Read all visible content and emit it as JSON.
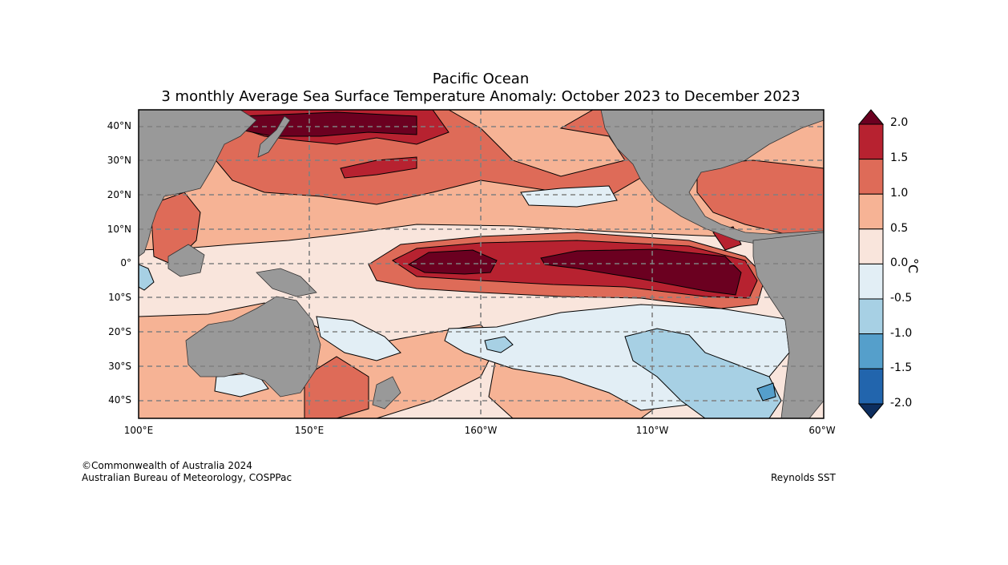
{
  "header": {
    "title": "Pacific Ocean",
    "subtitle": "3 monthly Average Sea Surface Temperature Anomaly: October 2023 to December 2023"
  },
  "map": {
    "lat_labels": [
      "40°N",
      "30°N",
      "20°N",
      "10°N",
      "0°",
      "10°S",
      "20°S",
      "30°S",
      "40°S"
    ],
    "lon_labels": [
      "100°E",
      "150°E",
      "160°W",
      "110°W",
      "60°W"
    ],
    "colors": {
      "ocean_neutral": "#f9e5dc",
      "land": "#999999",
      "grid": "#808080"
    }
  },
  "colorbar": {
    "unit": "°C",
    "labels": [
      "2.0",
      "1.5",
      "1.0",
      "0.5",
      "0.0",
      "-0.5",
      "-1.0",
      "-1.5",
      "-2.0"
    ],
    "bins": [
      {
        "range": ">2.0",
        "color": "#6b0020"
      },
      {
        "range": "1.5 to 2.0",
        "color": "#b72230"
      },
      {
        "range": "1.0 to 1.5",
        "color": "#de6b58"
      },
      {
        "range": "0.5 to 1.0",
        "color": "#f6b395"
      },
      {
        "range": "0.0 to 0.5",
        "color": "#f9e5dc"
      },
      {
        "range": "-0.5 to 0.0",
        "color": "#e2eef5"
      },
      {
        "range": "-1.0 to -0.5",
        "color": "#a7d0e4"
      },
      {
        "range": "-1.5 to -1.0",
        "color": "#559fcb"
      },
      {
        "range": "-2.0 to -1.5",
        "color": "#2265ad"
      },
      {
        "range": "<-2.0",
        "color": "#0d2e5f"
      }
    ]
  },
  "footer": {
    "copyright": "©Commonwealth of Australia 2024",
    "agency": "Australian Bureau of Meteorology, COSPPac",
    "source": "Reynolds SST"
  }
}
